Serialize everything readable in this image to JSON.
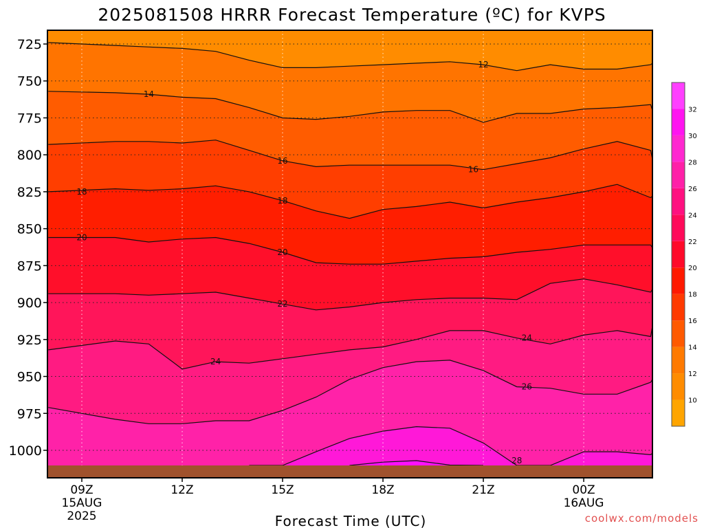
{
  "chart_data": {
    "type": "heatmap",
    "title": "2025081508 HRRR Forecast Temperature (ºC) for KVPS",
    "xlabel": "Forecast Time (UTC)",
    "credit": "coolwx.com/models",
    "x_hours": [
      -1,
      1,
      2,
      3,
      4,
      5,
      6,
      7,
      8,
      9,
      10,
      11,
      12,
      13,
      14,
      15,
      16,
      17,
      18,
      19
    ],
    "x_ticks": [
      {
        "label": "09Z",
        "date": "15AUG",
        "year": "2025"
      },
      {
        "label": "12Z"
      },
      {
        "label": "15Z"
      },
      {
        "label": "18Z"
      },
      {
        "label": "21Z"
      },
      {
        "label": "00Z",
        "date": "16AUG"
      }
    ],
    "y_ticks": [
      725,
      750,
      775,
      800,
      825,
      850,
      875,
      900,
      925,
      950,
      975,
      1000
    ],
    "ylim": [
      1013,
      716
    ],
    "surface_pressure": 1013,
    "colorbar": {
      "levels": [
        10,
        12,
        14,
        16,
        18,
        20,
        22,
        24,
        26,
        28,
        30,
        32
      ],
      "min": 8,
      "max": 34,
      "colors": [
        "#ffa500",
        "#ff8c00",
        "#ff7a00",
        "#ff5a00",
        "#ff3a00",
        "#ff1a00",
        "#ff0a2a",
        "#ff0a5a",
        "#ff1080",
        "#ff20a8",
        "#ff28d0",
        "#ff14f0",
        "#ff40ff"
      ]
    },
    "band_colors": {
      "10": "#ff8c00",
      "12": "#ff7400",
      "14": "#ff5c00",
      "16": "#ff3e00",
      "18": "#ff1e00",
      "20": "#ff0f2a",
      "22": "#ff155a",
      "24": "#ff1b82",
      "26": "#ff22a8",
      "28": "#ff18d8",
      "30": "#ff10ff"
    },
    "isotherms": [
      {
        "level": 12,
        "p": [
          724,
          726,
          727,
          728,
          730,
          736,
          741,
          741,
          740,
          739,
          738,
          737,
          739,
          743,
          739,
          742,
          742,
          739,
          738,
          737
        ],
        "labels": [
          {
            "x_hour": 21,
            "text": "12"
          }
        ]
      },
      {
        "level": 14,
        "p": [
          757,
          758,
          759,
          761,
          762,
          768,
          775,
          776,
          774,
          771,
          770,
          770,
          778,
          772,
          772,
          769,
          768,
          766,
          770,
          772
        ],
        "labels": [
          {
            "x_hour": 11,
            "text": "14"
          }
        ]
      },
      {
        "level": 16,
        "p": [
          793,
          791,
          791,
          792,
          790,
          797,
          804,
          808,
          807,
          807,
          807,
          807,
          810,
          806,
          802,
          796,
          791,
          797,
          803,
          798
        ],
        "labels": [
          {
            "x_hour": 15,
            "text": "16"
          },
          {
            "x_hour": 20.7,
            "text": "16"
          }
        ]
      },
      {
        "level": 18,
        "p": [
          825,
          823,
          824,
          823,
          821,
          825,
          831,
          838,
          843,
          837,
          835,
          832,
          836,
          832,
          829,
          825,
          820,
          829,
          828,
          823
        ],
        "labels": [
          {
            "x_hour": 9,
            "text": "18"
          },
          {
            "x_hour": 15,
            "text": "18"
          }
        ]
      },
      {
        "level": 20,
        "p": [
          856,
          856,
          859,
          857,
          856,
          860,
          866,
          873,
          874,
          874,
          872,
          870,
          869,
          866,
          864,
          861,
          861,
          861,
          863,
          866
        ],
        "labels": [
          {
            "x_hour": 9,
            "text": "20"
          },
          {
            "x_hour": 15,
            "text": "20"
          }
        ]
      },
      {
        "level": 22,
        "p": [
          894,
          894,
          895,
          894,
          893,
          897,
          901,
          905,
          903,
          900,
          898,
          897,
          897,
          898,
          887,
          884,
          888,
          893,
          891,
          888
        ],
        "labels": [
          {
            "x_hour": 15,
            "text": "22"
          }
        ]
      },
      {
        "level": 24,
        "p": [
          932,
          926,
          928,
          945,
          940,
          941,
          938,
          935,
          932,
          930,
          925,
          919,
          919,
          924,
          928,
          922,
          919,
          923,
          916,
          914
        ],
        "labels": [
          {
            "x_hour": 13,
            "text": "24"
          },
          {
            "x_hour": 22.3,
            "text": "24"
          }
        ]
      },
      {
        "level": 26,
        "p": [
          971,
          979,
          982,
          982,
          980,
          980,
          973,
          964,
          952,
          944,
          940,
          939,
          946,
          957,
          958,
          962,
          962,
          954,
          952,
          950
        ],
        "labels": [
          {
            "x_hour": 22.3,
            "text": "26"
          }
        ]
      },
      {
        "level": 28,
        "p": [
          1013,
          1013,
          1013,
          1013,
          1013,
          1013,
          1011,
          1001,
          992,
          987,
          984,
          985,
          995,
          1013,
          1013,
          1001,
          1001,
          1003,
          1002,
          1006
        ],
        "labels": [
          {
            "x_hour": 22,
            "text": "28"
          }
        ]
      },
      {
        "level": 30,
        "p": [
          1013,
          1013,
          1013,
          1013,
          1013,
          1013,
          1013,
          1013,
          1013,
          1008,
          1007,
          1010,
          1013,
          1013,
          1013,
          1013,
          1013,
          1013,
          1013,
          1013
        ],
        "labels": []
      }
    ]
  }
}
